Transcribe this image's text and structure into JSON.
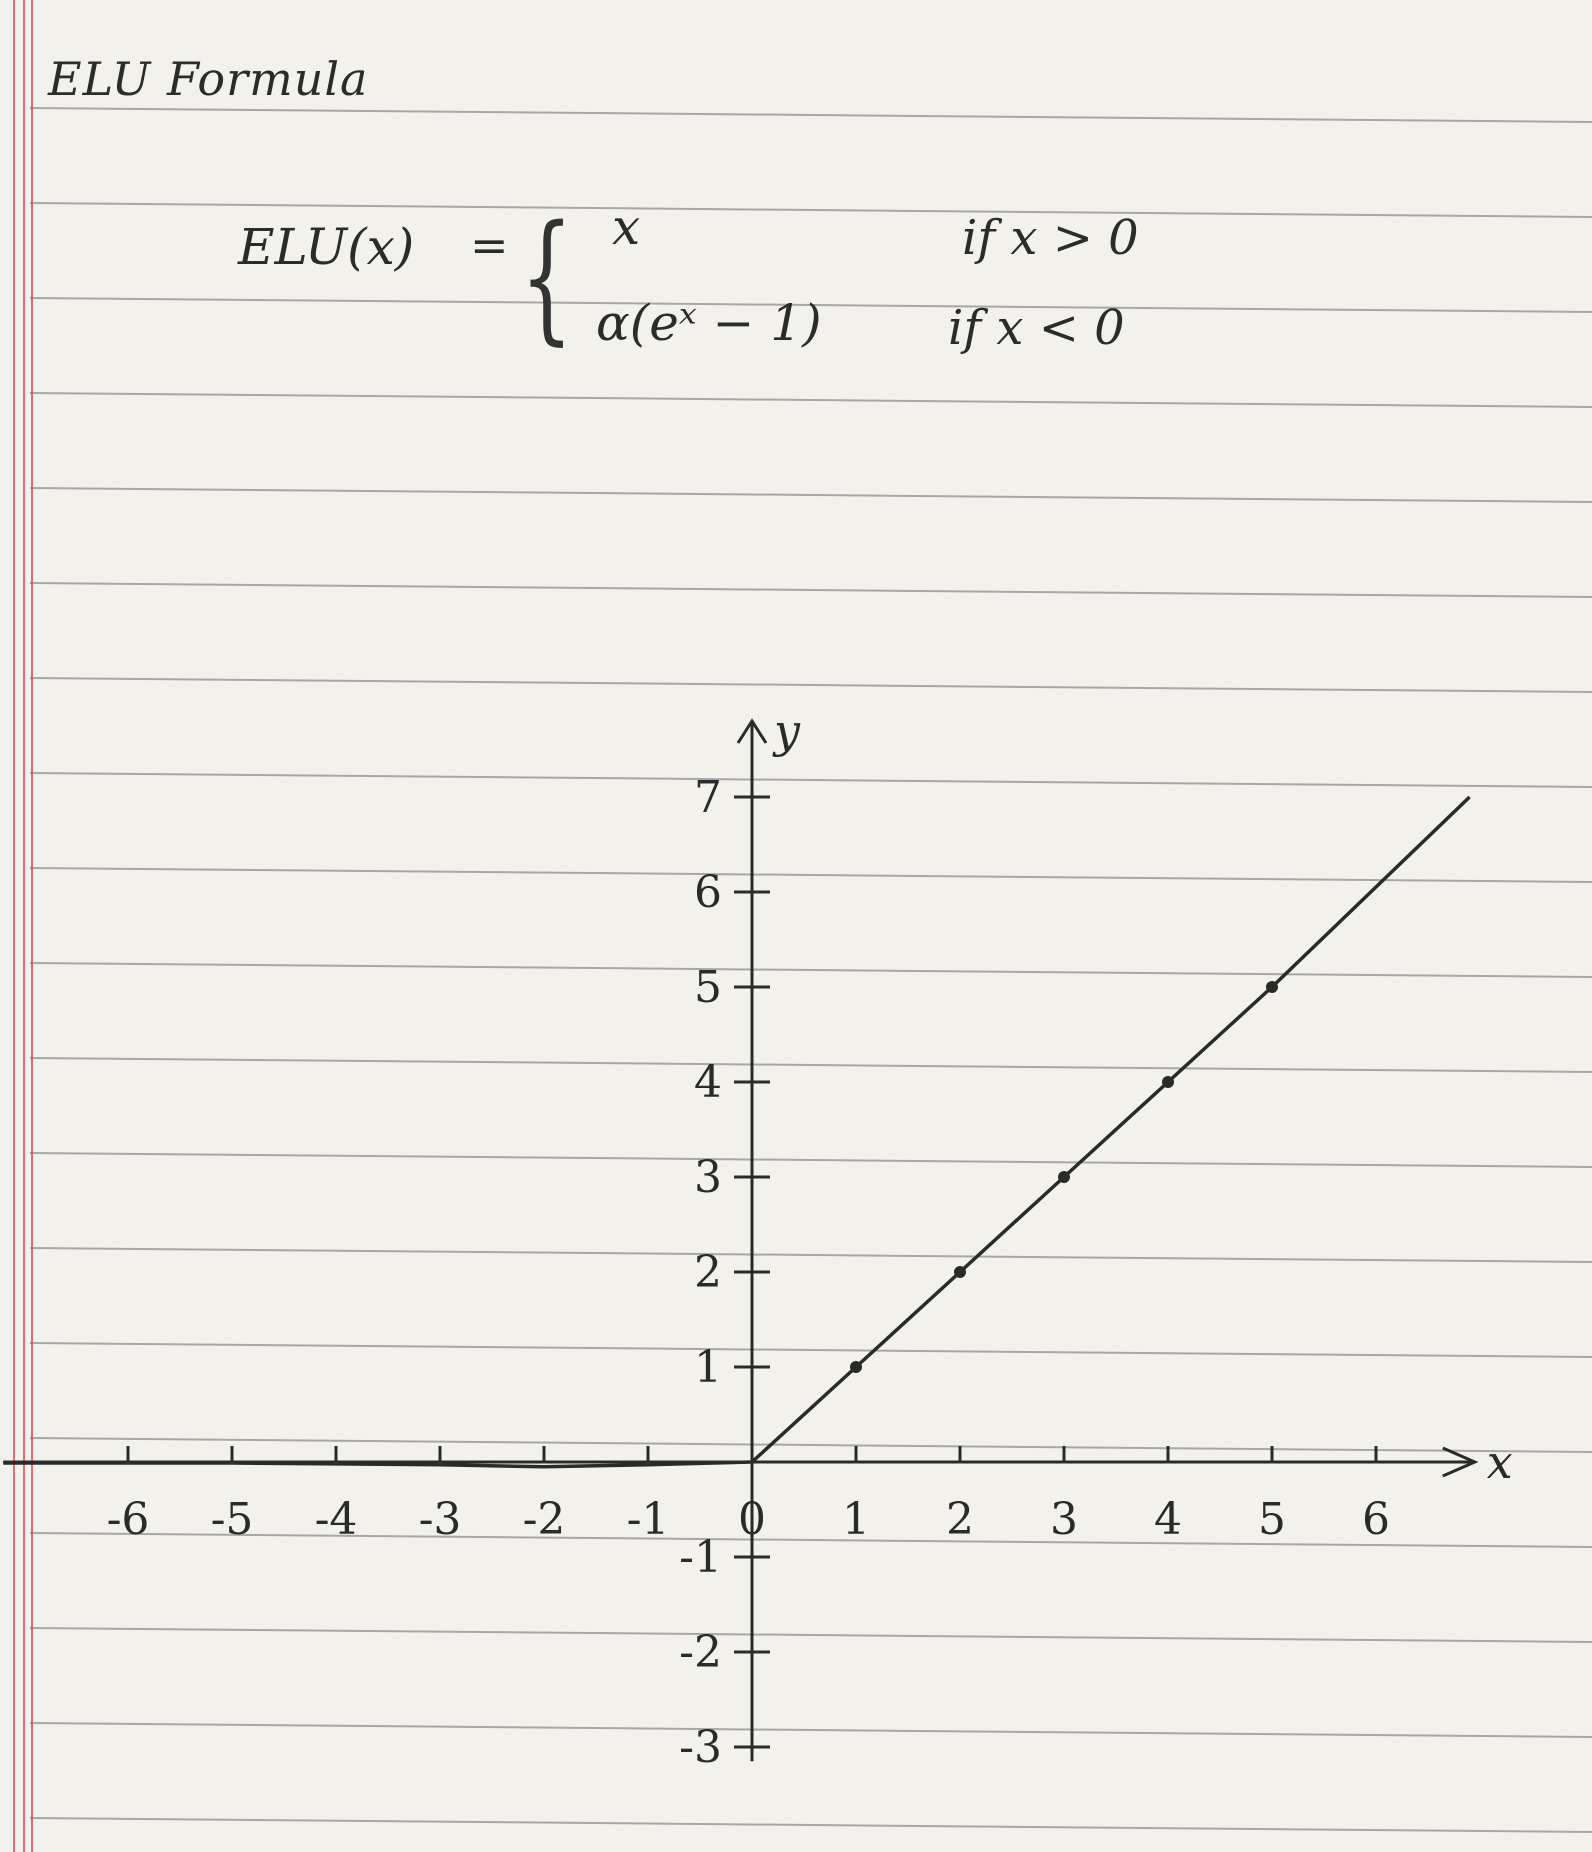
{
  "title": "ELU Formula",
  "formula": {
    "lhs": "ELU(x)",
    "equals": "=",
    "brace": "{",
    "case1_expr": "x",
    "case1_cond": "if x > 0",
    "case2_expr": "α(eˣ − 1)",
    "case2_cond": "if x < 0"
  },
  "chart_data": {
    "type": "line",
    "title": "",
    "xlabel": "x",
    "ylabel": "y",
    "xlim": [
      -6,
      6.8
    ],
    "ylim": [
      -3,
      7.6
    ],
    "x_ticks": [
      "-6",
      "-5",
      "-4",
      "-3",
      "-2",
      "-1",
      "0",
      "1",
      "2",
      "3",
      "4",
      "5",
      "6"
    ],
    "y_ticks": [
      "7",
      "6",
      "5",
      "4",
      "3",
      "2",
      "1",
      "-1",
      "-2",
      "-3"
    ],
    "series": [
      {
        "x": [
          -7.2,
          -6,
          -5,
          -4,
          -3,
          -2,
          -1,
          0,
          1,
          2,
          3,
          4,
          5,
          6.9
        ],
        "y": [
          -0.01,
          -0.01,
          -0.01,
          -0.02,
          -0.03,
          -0.05,
          -0.03,
          0,
          1,
          2,
          3,
          4,
          5,
          7
        ]
      }
    ],
    "points": [
      {
        "x": 1,
        "y": 1
      },
      {
        "x": 2,
        "y": 2
      },
      {
        "x": 3,
        "y": 3
      },
      {
        "x": 4,
        "y": 4
      },
      {
        "x": 5,
        "y": 5
      }
    ],
    "grid": false,
    "legend": "none"
  },
  "colors": {
    "paper": "#f3f1ec",
    "rule_line": "#8f8f8f",
    "margin_line": "#e24a5a",
    "ink": "#2a2a2a"
  }
}
